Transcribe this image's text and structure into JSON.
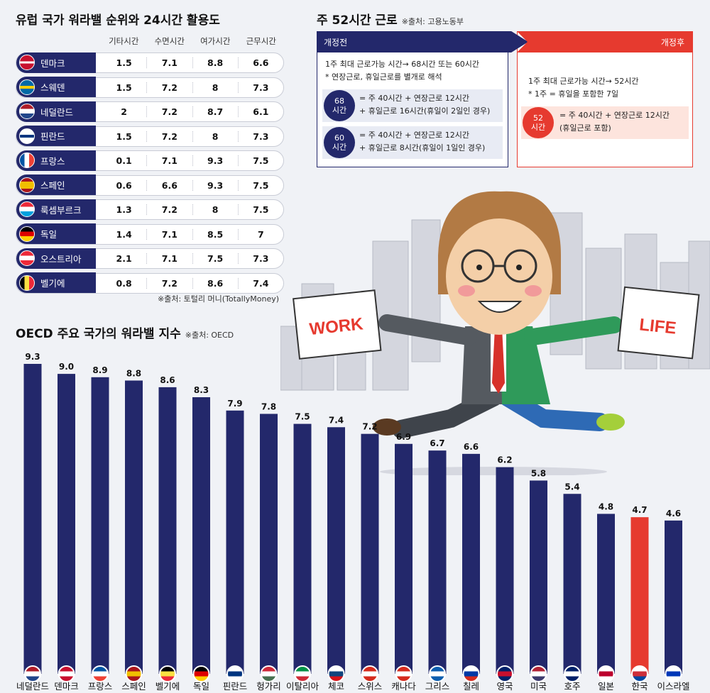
{
  "europe": {
    "title": "유럽 국가  워라밸 순위와  24시간 활용도",
    "columns": [
      "기타시간",
      "수면시간",
      "여가시간",
      "근무시간"
    ],
    "rows": [
      {
        "country": "덴마크",
        "flag": "denmark-flag-icon",
        "values": [
          "1.5",
          "7.1",
          "8.8",
          "6.6"
        ]
      },
      {
        "country": "스웨덴",
        "flag": "sweden-flag-icon",
        "values": [
          "1.5",
          "7.2",
          "8",
          "7.3"
        ]
      },
      {
        "country": "네덜란드",
        "flag": "netherlands-flag-icon",
        "values": [
          "2",
          "7.2",
          "8.7",
          "6.1"
        ]
      },
      {
        "country": "핀란드",
        "flag": "finland-flag-icon",
        "values": [
          "1.5",
          "7.2",
          "8",
          "7.3"
        ]
      },
      {
        "country": "프랑스",
        "flag": "france-flag-icon",
        "values": [
          "0.1",
          "7.1",
          "9.3",
          "7.5"
        ]
      },
      {
        "country": "스페인",
        "flag": "spain-flag-icon",
        "values": [
          "0.6",
          "6.6",
          "9.3",
          "7.5"
        ]
      },
      {
        "country": "룩셈부르크",
        "flag": "luxembourg-flag-icon",
        "values": [
          "1.3",
          "7.2",
          "8",
          "7.5"
        ]
      },
      {
        "country": "독일",
        "flag": "germany-flag-icon",
        "values": [
          "1.4",
          "7.1",
          "8.5",
          "7"
        ]
      },
      {
        "country": "오스트리아",
        "flag": "austria-flag-icon",
        "values": [
          "2.1",
          "7.1",
          "7.5",
          "7.3"
        ]
      },
      {
        "country": "벨기에",
        "flag": "belgium-flag-icon",
        "values": [
          "0.8",
          "7.2",
          "8.6",
          "7.4"
        ]
      }
    ],
    "source": "※출처: 토털리 머니(TotallyMoney)"
  },
  "hours52": {
    "title": "주 52시간 근로",
    "source": "※출처: 고용노동부",
    "before_label": "개정전",
    "after_label": "개정후",
    "before_line1": "1주 최대 근로가능 시간→ 68시간 또는 60시간",
    "before_line2": "* 연장근로, 휴일근로를 별개로 해석",
    "case68_circle": "68\n시간",
    "case68_line1": "= 주 40시간 + 연장근로 12시간",
    "case68_line2": "+ 휴일근로 16시간(휴일이 2일인 경우)",
    "case60_circle": "60\n시간",
    "case60_line1": "= 주 40시간 + 연장근로 12시간",
    "case60_line2": "+ 휴일근로 8시간(휴일이 1일인 경우)",
    "after_line1": "1주 최대 근로가능 시간→ 52시간",
    "after_line2": "* 1주 = 휴일을 포함한 7일",
    "case52_circle": "52\n시간",
    "case52_line1": "= 주 40시간 + 연장근로 12시간",
    "case52_line2": "(휴일근로 포함)"
  },
  "illustration": {
    "work_sign": "WORK",
    "life_sign": "LIFE"
  },
  "oecd": {
    "title": "OECD 주요 국가의 워라밸 지수",
    "source": "※출처: OECD"
  },
  "colors": {
    "navy": "#23286b",
    "red": "#e63a2f",
    "highlight": "한국"
  },
  "chart_data": {
    "type": "bar",
    "title": "OECD 주요 국가의 워라밸 지수",
    "categories": [
      "네덜란드",
      "덴마크",
      "프랑스",
      "스페인",
      "벨기에",
      "독일",
      "핀란드",
      "헝가리",
      "이탈리아",
      "체코",
      "스위스",
      "캐나다",
      "그리스",
      "칠레",
      "영국",
      "미국",
      "호주",
      "일본",
      "한국",
      "이스라엘"
    ],
    "values": [
      9.3,
      9.0,
      8.9,
      8.8,
      8.6,
      8.3,
      7.9,
      7.8,
      7.5,
      7.4,
      7.2,
      6.9,
      6.7,
      6.6,
      6.2,
      5.8,
      5.4,
      4.8,
      4.7,
      4.6
    ],
    "value_labels": [
      "9.3",
      "9.0",
      "8.9",
      "8.8",
      "8.6",
      "8.3",
      "7.9",
      "7.8",
      "7.5",
      "7.4",
      "7.2",
      "6.9",
      "6.7",
      "6.6",
      "6.2",
      "5.8",
      "5.4",
      "4.8",
      "4.7",
      "4.6"
    ],
    "ylim": [
      0,
      9.3
    ],
    "grid": false,
    "legend": "none"
  }
}
